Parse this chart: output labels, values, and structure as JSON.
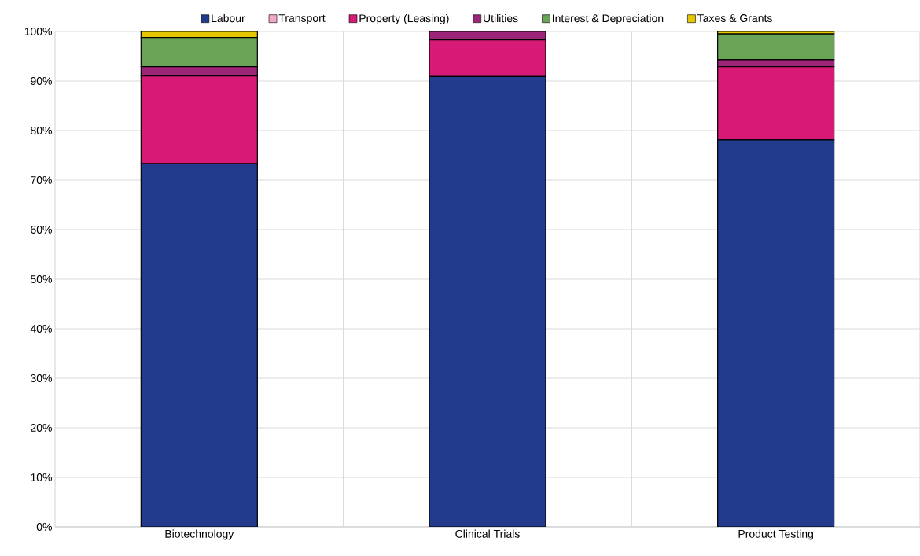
{
  "chart_data": {
    "type": "bar",
    "stacked": true,
    "categories": [
      "Biotechnology",
      "Clinical Trials",
      "Product Testing"
    ],
    "series": [
      {
        "name": "Labour",
        "color": "#223b8c",
        "values": [
          73.3,
          90.9,
          78.1
        ]
      },
      {
        "name": "Transport",
        "color": "#f4a6c8",
        "values": [
          0,
          0,
          0
        ]
      },
      {
        "name": "Property (Leasing)",
        "color": "#d61a75",
        "values": [
          17.7,
          7.4,
          14.8
        ]
      },
      {
        "name": "Utilities",
        "color": "#9c2578",
        "values": [
          1.9,
          1.7,
          1.4
        ]
      },
      {
        "name": "Interest & Depreciation",
        "color": "#6aa457",
        "values": [
          5.9,
          0,
          5.2
        ]
      },
      {
        "name": "Taxes & Grants",
        "color": "#e5c700",
        "values": [
          1.2,
          0,
          0.5
        ]
      }
    ],
    "ylim": [
      0,
      100
    ],
    "yticks": [
      {
        "value": 0,
        "label": "0%"
      },
      {
        "value": 10,
        "label": "10%"
      },
      {
        "value": 20,
        "label": "20%"
      },
      {
        "value": 30,
        "label": "30%"
      },
      {
        "value": 40,
        "label": "40%"
      },
      {
        "value": 50,
        "label": "50%"
      },
      {
        "value": 60,
        "label": "60%"
      },
      {
        "value": 70,
        "label": "70%"
      },
      {
        "value": 80,
        "label": "80%"
      },
      {
        "value": 90,
        "label": "90%"
      },
      {
        "value": 100,
        "label": "100%"
      }
    ],
    "grid": true,
    "legend": "top"
  }
}
